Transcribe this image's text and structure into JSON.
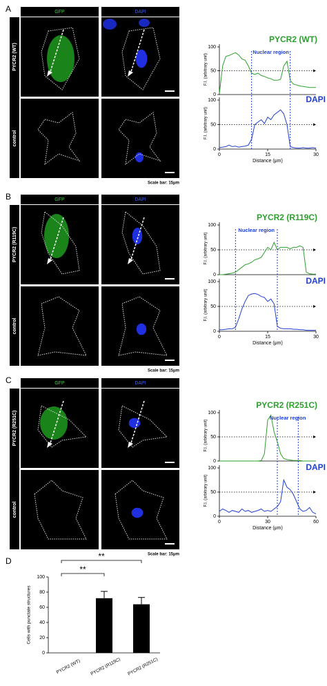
{
  "panels": [
    {
      "letter": "A",
      "channels": [
        "GFP",
        "DAPI"
      ],
      "rows": [
        "PYCR2 (WT)",
        "control"
      ],
      "scale_bar": "Scale bar: 15μm"
    },
    {
      "letter": "B",
      "channels": [
        "GFP",
        "DAPI"
      ],
      "rows": [
        "PYCR2 (R119C)",
        "control"
      ],
      "scale_bar": "Scale bar: 15μm"
    },
    {
      "letter": "C",
      "channels": [
        "GFP",
        "DAPI"
      ],
      "rows": [
        "PYCR2 (R251C)",
        "control"
      ],
      "scale_bar": "Scale bar: 15μm"
    },
    {
      "letter": "D"
    }
  ],
  "chart_data": [
    {
      "type": "line",
      "annotation": "Nuclear region",
      "nuclear_region": [
        10,
        22
      ],
      "reference_line": 50,
      "xlabel": "Distance (μm)",
      "ylabel": "F.I. (arbitrary unit)",
      "xlim": [
        0,
        30
      ],
      "xticks": [
        0,
        15,
        30
      ],
      "ylim": [
        0,
        100
      ],
      "yticks": [
        0,
        50,
        100
      ],
      "x": [
        0,
        1,
        2,
        3,
        4,
        5,
        6,
        7,
        8,
        9,
        10,
        11,
        12,
        13,
        14,
        15,
        16,
        17,
        18,
        19,
        20,
        21,
        22,
        23,
        24,
        25,
        26,
        27,
        28,
        29,
        30
      ],
      "series": [
        {
          "name": "PYCR2 (WT)",
          "color": "#2ca02c",
          "values": [
            2,
            60,
            80,
            82,
            85,
            88,
            83,
            75,
            72,
            60,
            45,
            42,
            45,
            40,
            38,
            35,
            33,
            30,
            30,
            32,
            60,
            70,
            30,
            22,
            20,
            18,
            17,
            16,
            15,
            15,
            15
          ]
        },
        {
          "name": "DAPI",
          "color": "#1f3fd0",
          "values": [
            3,
            4,
            5,
            8,
            5,
            6,
            4,
            5,
            6,
            8,
            20,
            50,
            55,
            60,
            52,
            65,
            60,
            70,
            75,
            80,
            72,
            50,
            5,
            3,
            2,
            2,
            3,
            2,
            2,
            3,
            2
          ]
        }
      ]
    },
    {
      "type": "line",
      "annotation": "Nuclear region",
      "nuclear_region": [
        5,
        18
      ],
      "reference_line": 50,
      "xlabel": "Distance (μm)",
      "ylabel": "F.I. (arbitrary unit)",
      "xlim": [
        0,
        30
      ],
      "xticks": [
        0,
        15,
        30
      ],
      "ylim": [
        0,
        100
      ],
      "yticks": [
        0,
        50,
        100
      ],
      "x": [
        0,
        1,
        2,
        3,
        4,
        5,
        6,
        7,
        8,
        9,
        10,
        11,
        12,
        13,
        14,
        15,
        16,
        17,
        18,
        19,
        20,
        21,
        22,
        23,
        24,
        25,
        26,
        27,
        28,
        29,
        30
      ],
      "series": [
        {
          "name": "PYCR2 (R119C)",
          "color": "#2ca02c",
          "values": [
            0,
            0,
            1,
            2,
            3,
            5,
            10,
            15,
            20,
            22,
            25,
            30,
            32,
            35,
            45,
            55,
            50,
            65,
            50,
            55,
            55,
            55,
            52,
            55,
            55,
            58,
            55,
            5,
            2,
            1,
            1
          ]
        },
        {
          "name": "DAPI",
          "color": "#1f3fd0",
          "values": [
            3,
            3,
            4,
            5,
            5,
            8,
            25,
            45,
            60,
            72,
            75,
            76,
            74,
            70,
            68,
            60,
            65,
            55,
            10,
            6,
            5,
            5,
            5,
            4,
            4,
            3,
            3,
            2,
            2,
            2,
            2
          ]
        }
      ]
    },
    {
      "type": "line",
      "annotation": "Nuclear region",
      "nuclear_region": [
        36,
        49
      ],
      "reference_line": 50,
      "xlabel": "Distance (μm)",
      "ylabel": "F.I. (arbitrary unit)",
      "xlim": [
        0,
        60
      ],
      "xticks": [
        0,
        30,
        60
      ],
      "ylim": [
        0,
        100
      ],
      "yticks": [
        0,
        50,
        100
      ],
      "x": [
        0,
        2,
        4,
        6,
        8,
        10,
        12,
        14,
        16,
        18,
        20,
        22,
        24,
        26,
        28,
        30,
        32,
        34,
        36,
        38,
        40,
        42,
        44,
        46,
        48,
        50,
        52,
        54,
        56,
        58,
        60
      ],
      "series": [
        {
          "name": "PYCR2 (R251C)",
          "color": "#2ca02c",
          "values": [
            0,
            0,
            0,
            0,
            0,
            0,
            0,
            0,
            0,
            0,
            0,
            0,
            0,
            1,
            15,
            85,
            95,
            60,
            40,
            15,
            5,
            3,
            2,
            1,
            1,
            1,
            0,
            0,
            0,
            0,
            0
          ]
        },
        {
          "name": "DAPI",
          "color": "#1f3fd0",
          "values": [
            10,
            15,
            12,
            8,
            12,
            10,
            8,
            15,
            10,
            12,
            8,
            10,
            12,
            15,
            10,
            12,
            10,
            15,
            20,
            30,
            75,
            60,
            55,
            45,
            30,
            15,
            10,
            12,
            18,
            8,
            5
          ]
        }
      ]
    },
    {
      "type": "bar",
      "ylabel": "Cells with punctate structures",
      "categories": [
        "PYCR2 (WT)",
        "PYCR2 (R119C)",
        "PYCR2 (R251C)"
      ],
      "values": [
        0,
        72,
        64
      ],
      "errors": [
        0,
        9,
        9
      ],
      "color": "#000000",
      "ylim": [
        0,
        100
      ],
      "yticks": [
        0,
        20,
        40,
        60,
        80,
        100
      ],
      "significance": [
        "**",
        "**"
      ]
    }
  ]
}
